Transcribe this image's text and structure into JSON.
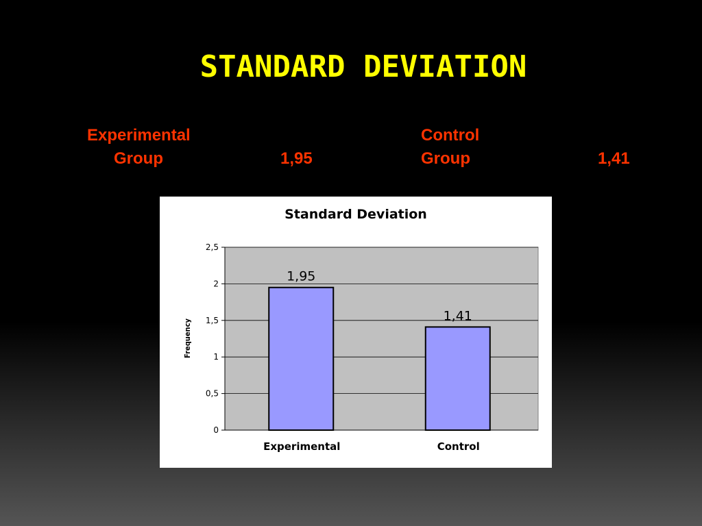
{
  "slide": {
    "title": "STANDARD DEVIATION",
    "title_color": "#ffff00",
    "stat_color": "#ff3300"
  },
  "stats": {
    "experimental": {
      "line1": "Experimental",
      "line2": "Group",
      "value": "1,95"
    },
    "control": {
      "line1": "Control",
      "line2": "Group",
      "value": "1,41"
    }
  },
  "chart_data": {
    "type": "bar",
    "title": "Standard Deviation",
    "xlabel": "",
    "ylabel": "Frequency",
    "categories": [
      "Experimental",
      "Control"
    ],
    "values": [
      1.95,
      1.41
    ],
    "data_labels": [
      "1,95",
      "1,41"
    ],
    "ylim": [
      0,
      2.5
    ],
    "yticks": [
      0,
      0.5,
      1,
      1.5,
      2,
      2.5
    ],
    "ytick_labels": [
      "0",
      "0,5",
      "1",
      "1,5",
      "2",
      "2,5"
    ],
    "grid": true,
    "legend": "none",
    "bar_color": "#9999ff",
    "plot_bg": "#c0c0c0"
  }
}
